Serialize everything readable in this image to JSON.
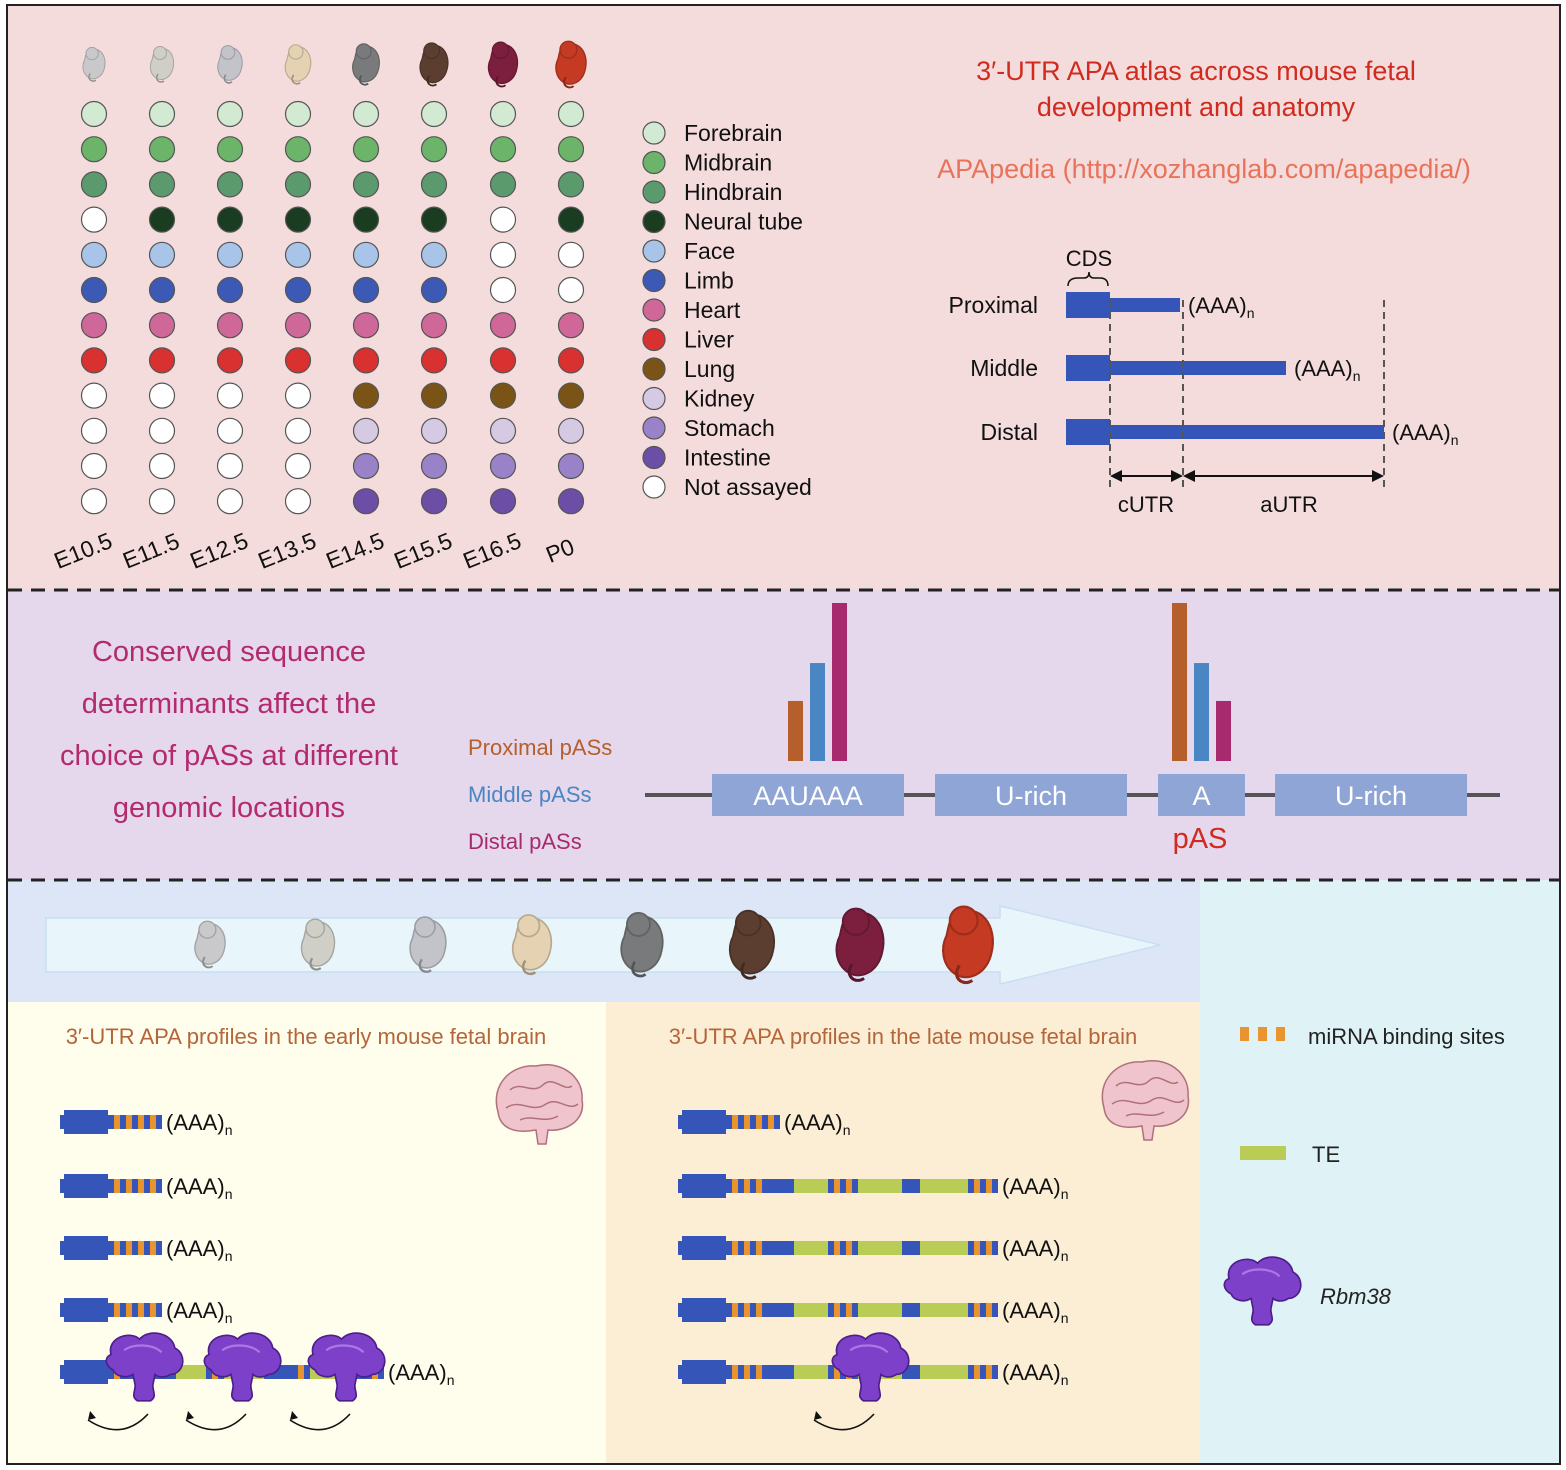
{
  "atlas": {
    "title_line1": "3′-UTR APA atlas across mouse fetal",
    "title_line2": "development and anatomy",
    "resource": "APApedia (http://xozhanglab.com/apapedia/)",
    "stages": [
      "E10.5",
      "E11.5",
      "E12.5",
      "E13.5",
      "E14.5",
      "E15.5",
      "E16.5",
      "P0"
    ],
    "tissues": [
      {
        "name": "Forebrain",
        "color": "#d3ead2"
      },
      {
        "name": "Midbrain",
        "color": "#6cb46a"
      },
      {
        "name": "Hindbrain",
        "color": "#5a9a6c"
      },
      {
        "name": "Neural tube",
        "color": "#1a3d22"
      },
      {
        "name": "Face",
        "color": "#a9c4e9"
      },
      {
        "name": "Limb",
        "color": "#3c59b6"
      },
      {
        "name": "Heart",
        "color": "#cf6898"
      },
      {
        "name": "Liver",
        "color": "#d93030"
      },
      {
        "name": "Lung",
        "color": "#7a5416"
      },
      {
        "name": "Kidney",
        "color": "#d6c9e4"
      },
      {
        "name": "Stomach",
        "color": "#9a82c8"
      },
      {
        "name": "Intestine",
        "color": "#6c4ea6"
      },
      {
        "name": "Not assayed",
        "color": "#ffffff"
      }
    ],
    "assayed_matrix": [
      [
        1,
        1,
        1,
        1,
        1,
        1,
        1,
        1
      ],
      [
        1,
        1,
        1,
        1,
        1,
        1,
        1,
        1
      ],
      [
        1,
        1,
        1,
        1,
        1,
        1,
        1,
        1
      ],
      [
        0,
        1,
        1,
        1,
        1,
        1,
        0,
        1
      ],
      [
        1,
        1,
        1,
        1,
        1,
        1,
        0,
        0
      ],
      [
        1,
        1,
        1,
        1,
        1,
        1,
        0,
        0
      ],
      [
        1,
        1,
        1,
        1,
        1,
        1,
        1,
        1
      ],
      [
        1,
        1,
        1,
        1,
        1,
        1,
        1,
        1
      ],
      [
        0,
        0,
        0,
        0,
        1,
        1,
        1,
        1
      ],
      [
        0,
        0,
        0,
        0,
        1,
        1,
        1,
        1
      ],
      [
        0,
        0,
        0,
        0,
        1,
        1,
        1,
        1
      ],
      [
        0,
        0,
        0,
        0,
        1,
        1,
        1,
        1
      ]
    ],
    "embryo_colors": [
      "#c9c9cc",
      "#cfcfc8",
      "#c2c4ca",
      "#e4d2b2",
      "#787a7c",
      "#5c3e30",
      "#7c1f3e",
      "#c43a22"
    ]
  },
  "isoforms": {
    "cds_label": "CDS",
    "rows": [
      "Proximal",
      "Middle",
      "Distal"
    ],
    "polya": "(AAA)",
    "polya_sub": "n",
    "cutr": "cUTR",
    "autr": "aUTR",
    "color": "#3556b8"
  },
  "determinants": {
    "heading": [
      "Conserved sequence",
      "determinants affect the",
      "choice of pASs at different",
      "genomic locations"
    ],
    "legend": [
      {
        "name": "Proximal pASs",
        "color": "#b5602c"
      },
      {
        "name": "Middle pASs",
        "color": "#4a86c4"
      },
      {
        "name": "Distal pASs",
        "color": "#a82a6e"
      }
    ],
    "boxes": [
      "AAUAAA",
      "U-rich",
      "A",
      "U-rich"
    ],
    "pas_label": "pAS",
    "bars_aauaaa": [
      0.38,
      0.62,
      1.0
    ],
    "bars_a": [
      1.0,
      0.62,
      0.38
    ]
  },
  "brain": {
    "early_title": "3′-UTR APA profiles in the early mouse fetal brain",
    "late_title": "3′-UTR APA profiles in the late mouse fetal brain",
    "legend": {
      "mirna": "miRNA binding sites",
      "te": "TE",
      "rbm38": "Rbm38"
    },
    "colors": {
      "mirna": "#e8952f",
      "te": "#b9cc55",
      "rbm38": "#7d40c8",
      "utr": "#3556b8"
    }
  }
}
